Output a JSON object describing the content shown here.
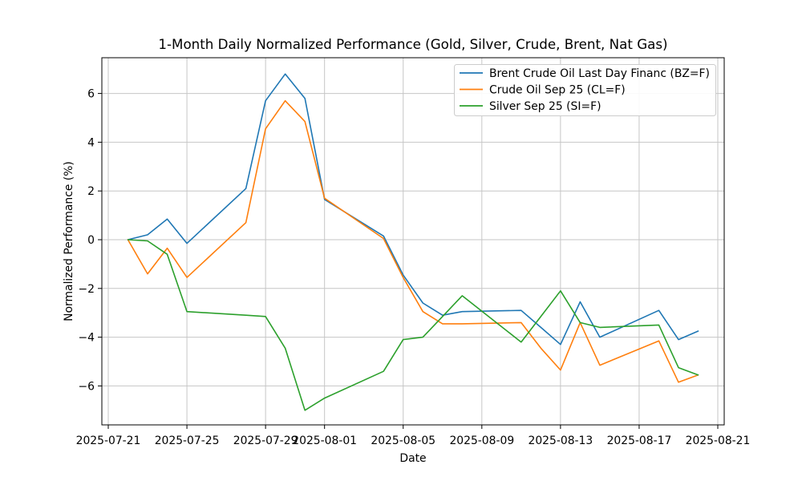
{
  "chart_data": {
    "type": "line",
    "title": "1-Month Daily Normalized Performance (Gold, Silver, Crude, Brent, Nat Gas)",
    "xlabel": "Date",
    "ylabel": "Normalized Performance (%)",
    "grid": true,
    "legend_position": "upper right",
    "x": [
      "2025-07-22",
      "2025-07-23",
      "2025-07-24",
      "2025-07-25",
      "2025-07-28",
      "2025-07-29",
      "2025-07-30",
      "2025-07-31",
      "2025-08-01",
      "2025-08-04",
      "2025-08-05",
      "2025-08-06",
      "2025-08-07",
      "2025-08-08",
      "2025-08-11",
      "2025-08-12",
      "2025-08-13",
      "2025-08-14",
      "2025-08-15",
      "2025-08-18",
      "2025-08-19",
      "2025-08-20"
    ],
    "series": [
      {
        "name": "Brent Crude Oil Last Day Financ (BZ=F)",
        "color": "#1f77b4",
        "values": [
          0.0,
          0.2,
          0.85,
          -0.15,
          2.1,
          5.7,
          6.8,
          5.8,
          1.65,
          0.15,
          -1.45,
          -2.6,
          -3.1,
          -2.95,
          -2.9,
          -3.6,
          -4.3,
          -2.55,
          -4.0,
          -2.9,
          -4.1,
          -3.75
        ]
      },
      {
        "name": "Crude Oil Sep 25 (CL=F)",
        "color": "#ff7f0e",
        "values": [
          0.0,
          -1.4,
          -0.35,
          -1.55,
          0.7,
          4.55,
          5.7,
          4.85,
          1.7,
          0.05,
          -1.55,
          -2.95,
          -3.45,
          -3.45,
          -3.4,
          -4.45,
          -5.35,
          -3.4,
          -5.15,
          -4.15,
          -5.85,
          -5.55
        ]
      },
      {
        "name": "Silver Sep 25 (SI=F)",
        "color": "#2ca02c",
        "values": [
          0.0,
          -0.05,
          -0.6,
          -2.95,
          -3.1,
          -3.15,
          -4.45,
          -7.0,
          -6.5,
          -5.4,
          -4.1,
          -4.0,
          -3.15,
          -2.3,
          -4.2,
          -3.15,
          -2.1,
          -3.4,
          -3.6,
          -3.5,
          -5.25,
          -5.55
        ]
      }
    ],
    "xticks": [
      "2025-07-21",
      "2025-07-25",
      "2025-07-29",
      "2025-08-01",
      "2025-08-05",
      "2025-08-09",
      "2025-08-13",
      "2025-08-17",
      "2025-08-21"
    ],
    "yticks": [
      -6,
      -4,
      -2,
      0,
      2,
      4,
      6
    ],
    "ylim": [
      -7.6,
      7.5
    ],
    "xlim_days_from_first_tick": [
      -0.33,
      31.33
    ],
    "colors": {
      "grid": "#c6c6c6",
      "spine": "#000000",
      "legend_border": "#cccccc",
      "background": "#ffffff"
    }
  }
}
